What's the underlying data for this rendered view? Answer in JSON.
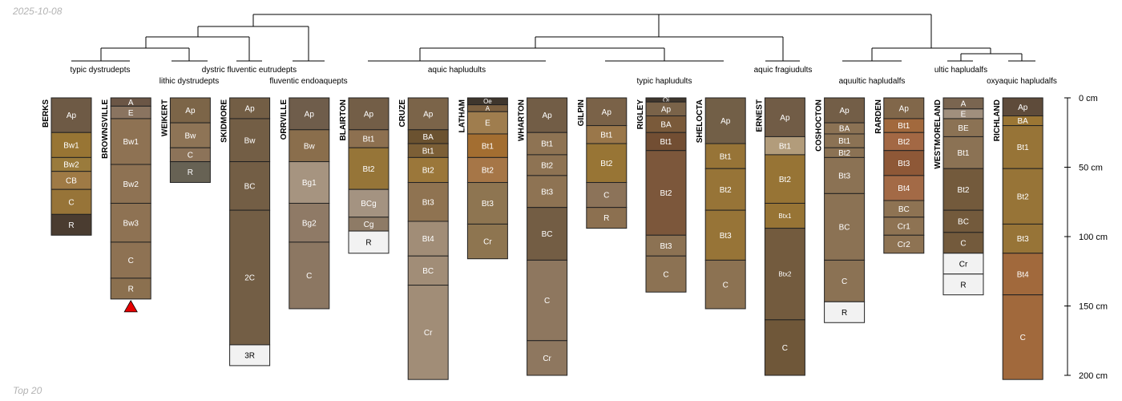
{
  "header": {
    "date": "2025-10-08",
    "caption": "Top 20"
  },
  "chart_data": {
    "type": "soil-profile-sketch",
    "depth_unit": "cm",
    "depth_range": [
      0,
      200
    ],
    "depth_axis": {
      "ticks": [
        0,
        50,
        100,
        150,
        200
      ],
      "labels": [
        "0 cm",
        "50 cm",
        "100 cm",
        "150 cm",
        "200 cm"
      ]
    },
    "taxa": [
      {
        "id": "t1",
        "label": "typic dystrudepts"
      },
      {
        "id": "t2",
        "label": "lithic dystrudepts"
      },
      {
        "id": "t3",
        "label": "dystric fluventic eutrudepts"
      },
      {
        "id": "t4",
        "label": "fluventic endoaquepts"
      },
      {
        "id": "t5",
        "label": "aquic hapludults"
      },
      {
        "id": "t6",
        "label": "typic hapludults"
      },
      {
        "id": "t7",
        "label": "aquic fragiudults"
      },
      {
        "id": "t8",
        "label": "aquultic hapludalfs"
      },
      {
        "id": "t9",
        "label": "ultic hapludalfs"
      },
      {
        "id": "t10",
        "label": "oxyaquic hapludalfs"
      }
    ],
    "profiles": [
      {
        "name": "BERKS",
        "horizons": [
          {
            "name": "Ap",
            "top": 0,
            "bottom": 25,
            "color": "#6e5a45"
          },
          {
            "name": "Bw1",
            "top": 25,
            "bottom": 43,
            "color": "#987534"
          },
          {
            "name": "Bw2",
            "top": 43,
            "bottom": 53,
            "color": "#9a7b3c"
          },
          {
            "name": "CB",
            "top": 53,
            "bottom": 66,
            "color": "#9f7a45"
          },
          {
            "name": "C",
            "top": 66,
            "bottom": 84,
            "color": "#977438"
          },
          {
            "name": "R",
            "top": 84,
            "bottom": 99,
            "color": "#4a3c30"
          }
        ]
      },
      {
        "name": "BROWNSVILLE",
        "bottom_marker": "red-triangle",
        "horizons": [
          {
            "name": "A",
            "top": 0,
            "bottom": 6,
            "color": "#6b5646"
          },
          {
            "name": "E",
            "top": 6,
            "bottom": 15,
            "color": "#8a7460"
          },
          {
            "name": "Bw1",
            "top": 15,
            "bottom": 48,
            "color": "#8e7253"
          },
          {
            "name": "Bw2",
            "top": 48,
            "bottom": 76,
            "color": "#8e7253"
          },
          {
            "name": "Bw3",
            "top": 76,
            "bottom": 104,
            "color": "#8e7253"
          },
          {
            "name": "C",
            "top": 104,
            "bottom": 130,
            "color": "#8e7253"
          },
          {
            "name": "R",
            "top": 130,
            "bottom": 145,
            "color": "#8b704f"
          }
        ]
      },
      {
        "name": "WEIKERT",
        "horizons": [
          {
            "name": "Ap",
            "top": 0,
            "bottom": 18,
            "color": "#7c6548"
          },
          {
            "name": "Bw",
            "top": 18,
            "bottom": 36,
            "color": "#8e7456"
          },
          {
            "name": "C",
            "top": 36,
            "bottom": 46,
            "color": "#8c7359"
          },
          {
            "name": "R",
            "top": 46,
            "bottom": 61,
            "color": "#676254"
          }
        ]
      },
      {
        "name": "SKIDMORE",
        "horizons": [
          {
            "name": "Ap",
            "top": 0,
            "bottom": 15,
            "color": "#735e45"
          },
          {
            "name": "Bw",
            "top": 15,
            "bottom": 46,
            "color": "#735e45"
          },
          {
            "name": "BC",
            "top": 46,
            "bottom": 81,
            "color": "#735e45"
          },
          {
            "name": "2C",
            "top": 81,
            "bottom": 178,
            "color": "#735e45"
          },
          {
            "name": "3R",
            "top": 178,
            "bottom": 193,
            "color": "#f2f2f2"
          }
        ]
      },
      {
        "name": "ORRVILLE",
        "horizons": [
          {
            "name": "Ap",
            "top": 0,
            "bottom": 23,
            "color": "#6f5d4b"
          },
          {
            "name": "Bw",
            "top": 23,
            "bottom": 46,
            "color": "#8a6e4c"
          },
          {
            "name": "Bg1",
            "top": 46,
            "bottom": 76,
            "color": "#a69480"
          },
          {
            "name": "Bg2",
            "top": 76,
            "bottom": 104,
            "color": "#8f7a66"
          },
          {
            "name": "C",
            "top": 104,
            "bottom": 152,
            "color": "#8c7762"
          }
        ]
      },
      {
        "name": "BLAIRTON",
        "horizons": [
          {
            "name": "Ap",
            "top": 0,
            "bottom": 23,
            "color": "#735e47"
          },
          {
            "name": "Bt1",
            "top": 23,
            "bottom": 36,
            "color": "#8d7050"
          },
          {
            "name": "Bt2",
            "top": 36,
            "bottom": 66,
            "color": "#967538"
          },
          {
            "name": "BCg",
            "top": 66,
            "bottom": 86,
            "color": "#a49381"
          },
          {
            "name": "Cg",
            "top": 86,
            "bottom": 96,
            "color": "#8e7b66"
          },
          {
            "name": "R",
            "top": 96,
            "bottom": 112,
            "color": "#f2f2f2"
          }
        ]
      },
      {
        "name": "CRUZE",
        "horizons": [
          {
            "name": "Ap",
            "top": 0,
            "bottom": 23,
            "color": "#7b6449"
          },
          {
            "name": "BA",
            "top": 23,
            "bottom": 33,
            "color": "#6b5230"
          },
          {
            "name": "Bt1",
            "top": 33,
            "bottom": 43,
            "color": "#7c5f36"
          },
          {
            "name": "Bt2",
            "top": 43,
            "bottom": 61,
            "color": "#9b773a"
          },
          {
            "name": "Bt3",
            "top": 61,
            "bottom": 89,
            "color": "#8f7351"
          },
          {
            "name": "Bt4",
            "top": 89,
            "bottom": 114,
            "color": "#a18d77"
          },
          {
            "name": "BC",
            "top": 114,
            "bottom": 135,
            "color": "#a18d77"
          },
          {
            "name": "Cr",
            "top": 135,
            "bottom": 203,
            "color": "#a18d77"
          }
        ]
      },
      {
        "name": "LATHAM",
        "horizons": [
          {
            "name": "Oe",
            "top": 0,
            "bottom": 5,
            "color": "#3f362d"
          },
          {
            "name": "A",
            "top": 5,
            "bottom": 10,
            "color": "#7c6040"
          },
          {
            "name": "E",
            "top": 10,
            "bottom": 26,
            "color": "#9f7d4e"
          },
          {
            "name": "Bt1",
            "top": 26,
            "bottom": 43,
            "color": "#a36e31"
          },
          {
            "name": "Bt2",
            "top": 43,
            "bottom": 61,
            "color": "#a67647"
          },
          {
            "name": "Bt3",
            "top": 61,
            "bottom": 91,
            "color": "#8e7551"
          },
          {
            "name": "Cr",
            "top": 91,
            "bottom": 116,
            "color": "#8e7550"
          }
        ]
      },
      {
        "name": "WHARTON",
        "horizons": [
          {
            "name": "Ap",
            "top": 0,
            "bottom": 25,
            "color": "#725d46"
          },
          {
            "name": "Bt1",
            "top": 25,
            "bottom": 41,
            "color": "#8e7353"
          },
          {
            "name": "Bt2",
            "top": 41,
            "bottom": 56,
            "color": "#8e7353"
          },
          {
            "name": "Bt3",
            "top": 56,
            "bottom": 79,
            "color": "#8e7353"
          },
          {
            "name": "BC",
            "top": 79,
            "bottom": 117,
            "color": "#735d44"
          },
          {
            "name": "C",
            "top": 117,
            "bottom": 175,
            "color": "#8e775f"
          },
          {
            "name": "Cr",
            "top": 175,
            "bottom": 200,
            "color": "#8e775f"
          }
        ]
      },
      {
        "name": "GILPIN",
        "horizons": [
          {
            "name": "Ap",
            "top": 0,
            "bottom": 20,
            "color": "#7a6248"
          },
          {
            "name": "Bt1",
            "top": 20,
            "bottom": 33,
            "color": "#9a774a"
          },
          {
            "name": "Bt2",
            "top": 33,
            "bottom": 61,
            "color": "#987535"
          },
          {
            "name": "C",
            "top": 61,
            "bottom": 79,
            "color": "#8c7359"
          },
          {
            "name": "R",
            "top": 79,
            "bottom": 94,
            "color": "#8c7050"
          }
        ]
      },
      {
        "name": "RIGLEY",
        "horizons": [
          {
            "name": "Oi",
            "top": 0,
            "bottom": 3,
            "color": "#3f362d"
          },
          {
            "name": "Ap",
            "top": 3,
            "bottom": 13,
            "color": "#7a6349"
          },
          {
            "name": "BA",
            "top": 13,
            "bottom": 25,
            "color": "#7a5a3a"
          },
          {
            "name": "Bt1",
            "top": 25,
            "bottom": 38,
            "color": "#724e33"
          },
          {
            "name": "Bt2",
            "top": 38,
            "bottom": 99,
            "color": "#7c573b"
          },
          {
            "name": "Bt3",
            "top": 99,
            "bottom": 114,
            "color": "#8c7253"
          },
          {
            "name": "C",
            "top": 114,
            "bottom": 140,
            "color": "#8c7253"
          }
        ]
      },
      {
        "name": "SHELOCTA",
        "horizons": [
          {
            "name": "Ap",
            "top": 0,
            "bottom": 33,
            "color": "#725f47"
          },
          {
            "name": "Bt1",
            "top": 33,
            "bottom": 51,
            "color": "#977437"
          },
          {
            "name": "Bt2",
            "top": 51,
            "bottom": 81,
            "color": "#977437"
          },
          {
            "name": "Bt3",
            "top": 81,
            "bottom": 117,
            "color": "#977437"
          },
          {
            "name": "C",
            "top": 117,
            "bottom": 152,
            "color": "#8c7252"
          }
        ]
      },
      {
        "name": "ERNEST",
        "horizons": [
          {
            "name": "Ap",
            "top": 0,
            "bottom": 28,
            "color": "#715c46"
          },
          {
            "name": "Bt1",
            "top": 28,
            "bottom": 41,
            "color": "#b29c7b"
          },
          {
            "name": "Bt2",
            "top": 41,
            "bottom": 76,
            "color": "#977435"
          },
          {
            "name": "Btx1",
            "top": 76,
            "bottom": 94,
            "color": "#977435"
          },
          {
            "name": "Btx2",
            "top": 94,
            "bottom": 160,
            "color": "#735b3e"
          },
          {
            "name": "C",
            "top": 160,
            "bottom": 200,
            "color": "#6f5739"
          }
        ]
      },
      {
        "name": "COSHOCTON",
        "horizons": [
          {
            "name": "Ap",
            "top": 0,
            "bottom": 18,
            "color": "#735e47"
          },
          {
            "name": "BA",
            "top": 18,
            "bottom": 26,
            "color": "#8b7254"
          },
          {
            "name": "Bt1",
            "top": 26,
            "bottom": 36,
            "color": "#8b7254"
          },
          {
            "name": "Bt2",
            "top": 36,
            "bottom": 43,
            "color": "#8b7254"
          },
          {
            "name": "Bt3",
            "top": 43,
            "bottom": 69,
            "color": "#8b7254"
          },
          {
            "name": "BC",
            "top": 69,
            "bottom": 117,
            "color": "#8b7254"
          },
          {
            "name": "C",
            "top": 117,
            "bottom": 147,
            "color": "#8b7254"
          },
          {
            "name": "R",
            "top": 147,
            "bottom": 162,
            "color": "#f2f2f2"
          }
        ]
      },
      {
        "name": "RARDEN",
        "horizons": [
          {
            "name": "Ap",
            "top": 0,
            "bottom": 15,
            "color": "#81674a"
          },
          {
            "name": "Bt1",
            "top": 15,
            "bottom": 25,
            "color": "#a2693d"
          },
          {
            "name": "Bt2",
            "top": 25,
            "bottom": 38,
            "color": "#a36844"
          },
          {
            "name": "Bt3",
            "top": 38,
            "bottom": 56,
            "color": "#8e5837"
          },
          {
            "name": "Bt4",
            "top": 56,
            "bottom": 74,
            "color": "#a36a46"
          },
          {
            "name": "BC",
            "top": 74,
            "bottom": 86,
            "color": "#8e7353"
          },
          {
            "name": "Cr1",
            "top": 86,
            "bottom": 99,
            "color": "#8e7353"
          },
          {
            "name": "Cr2",
            "top": 99,
            "bottom": 112,
            "color": "#8e7353"
          }
        ]
      },
      {
        "name": "WESTMORELAND",
        "horizons": [
          {
            "name": "A",
            "top": 0,
            "bottom": 8,
            "color": "#7a6550"
          },
          {
            "name": "E",
            "top": 8,
            "bottom": 15,
            "color": "#a08f7d"
          },
          {
            "name": "BE",
            "top": 15,
            "bottom": 28,
            "color": "#8b7254"
          },
          {
            "name": "Bt1",
            "top": 28,
            "bottom": 51,
            "color": "#8b7254"
          },
          {
            "name": "Bt2",
            "top": 51,
            "bottom": 81,
            "color": "#735a3c"
          },
          {
            "name": "BC",
            "top": 81,
            "bottom": 97,
            "color": "#735a3c"
          },
          {
            "name": "C",
            "top": 97,
            "bottom": 112,
            "color": "#735a3c"
          },
          {
            "name": "Cr",
            "top": 112,
            "bottom": 127,
            "color": "#f2f2f2"
          },
          {
            "name": "R",
            "top": 127,
            "bottom": 142,
            "color": "#f2f2f2"
          }
        ]
      },
      {
        "name": "RICHLAND",
        "horizons": [
          {
            "name": "Ap",
            "top": 0,
            "bottom": 13,
            "color": "#5e4b3a"
          },
          {
            "name": "BA",
            "top": 13,
            "bottom": 20,
            "color": "#9b7634"
          },
          {
            "name": "Bt1",
            "top": 20,
            "bottom": 51,
            "color": "#977437"
          },
          {
            "name": "Bt2",
            "top": 51,
            "bottom": 91,
            "color": "#977437"
          },
          {
            "name": "Bt3",
            "top": 91,
            "bottom": 112,
            "color": "#977437"
          },
          {
            "name": "Bt4",
            "top": 112,
            "bottom": 142,
            "color": "#a1693c"
          },
          {
            "name": "C",
            "top": 142,
            "bottom": 203,
            "color": "#a1693c"
          }
        ]
      }
    ]
  }
}
